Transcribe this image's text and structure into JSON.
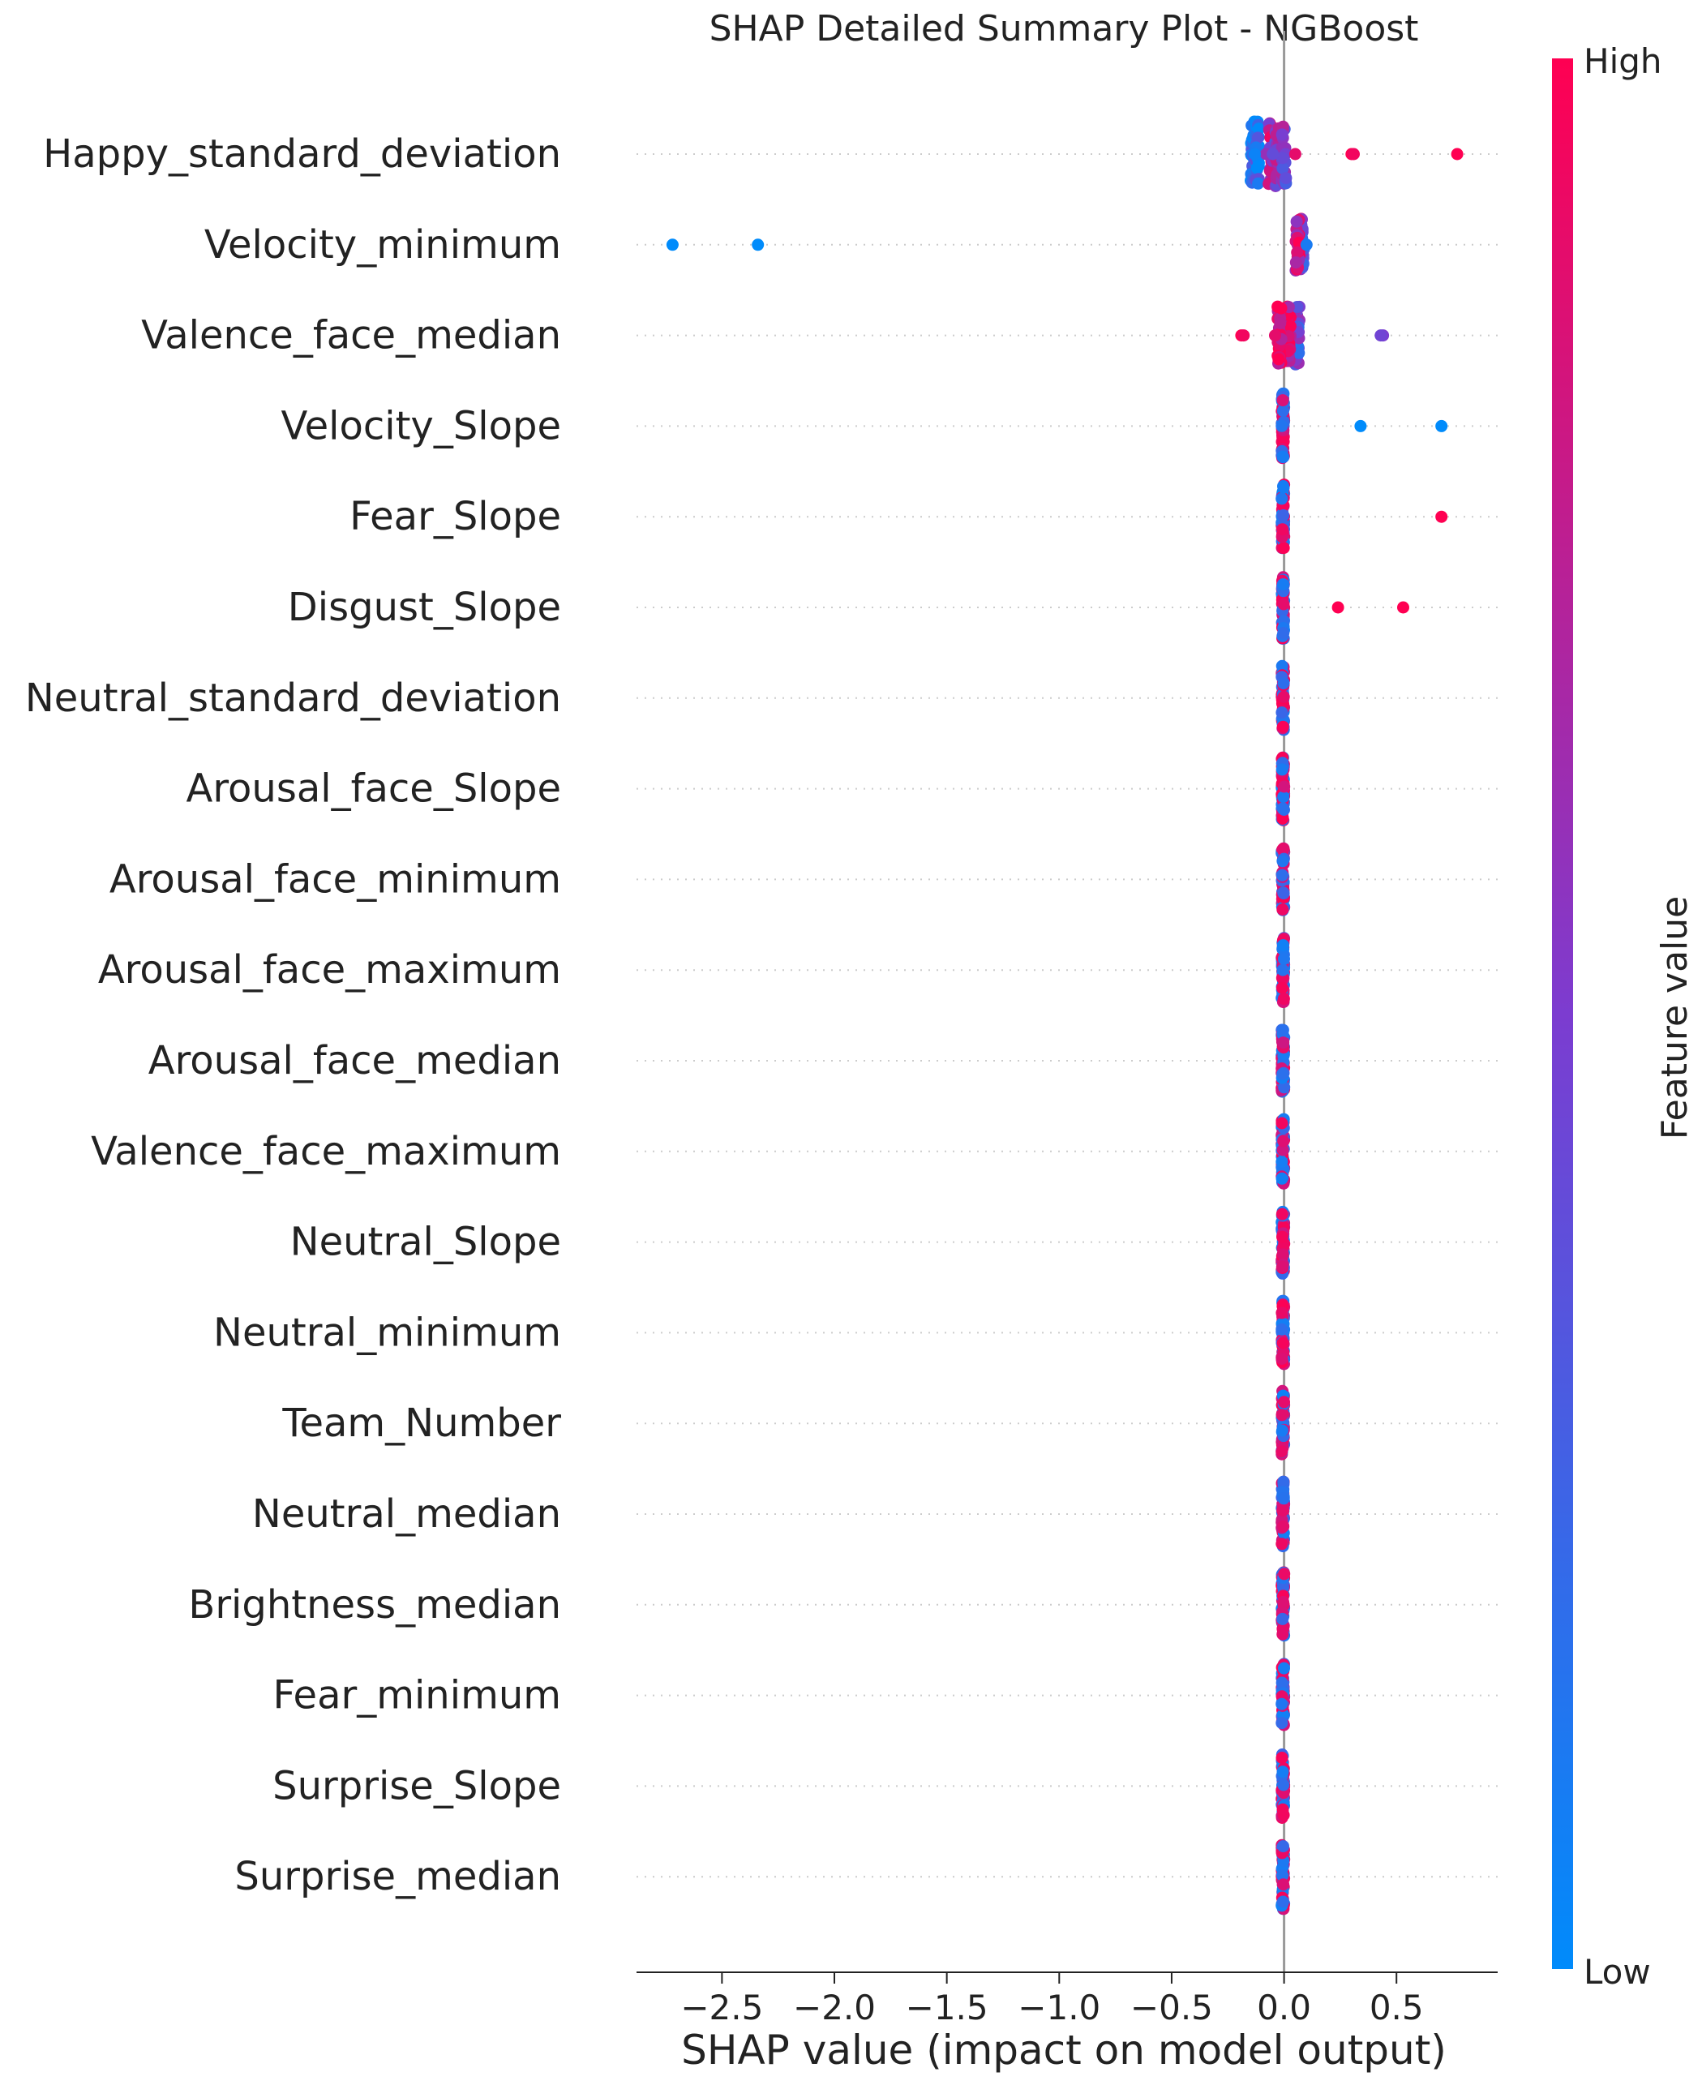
{
  "chart_data": {
    "type": "scatter",
    "title": "SHAP Detailed Summary Plot - NGBoost",
    "xlabel": "SHAP value (impact on model output)",
    "ylabel": "",
    "xlim": [
      -2.88,
      0.95
    ],
    "xticks": [
      -2.5,
      -2.0,
      -1.5,
      -1.0,
      -0.5,
      0.0,
      0.5
    ],
    "xtick_labels": [
      "−2.5",
      "−2.0",
      "−1.5",
      "−1.0",
      "−0.5",
      "0.0",
      "0.5"
    ],
    "grid": false,
    "colorbar": {
      "label": "Feature value",
      "high_label": "High",
      "low_label": "Low",
      "low_color": "#008bfb",
      "mid_color": "#7c3cd0",
      "high_color": "#ff0052"
    },
    "zero_line_color": "#999999",
    "features": [
      "Happy_standard_deviation",
      "Velocity_minimum",
      "Valence_face_median",
      "Velocity_Slope",
      "Fear_Slope",
      "Disgust_Slope",
      "Neutral_standard_deviation",
      "Arousal_face_Slope",
      "Arousal_face_minimum",
      "Arousal_face_maximum",
      "Arousal_face_median",
      "Valence_face_maximum",
      "Neutral_Slope",
      "Neutral_minimum",
      "Team_Number",
      "Neutral_median",
      "Brightness_median",
      "Fear_minimum",
      "Surprise_Slope",
      "Surprise_median"
    ],
    "outliers": [
      {
        "feature": "Happy_standard_deviation",
        "points": [
          [
            0.05,
            0.9
          ],
          [
            0.3,
            1.0
          ],
          [
            0.31,
            0.95
          ],
          [
            0.77,
            1.0
          ],
          [
            -0.08,
            0.6
          ],
          [
            -0.05,
            0.4
          ],
          [
            -0.13,
            0.05
          ]
        ]
      },
      {
        "feature": "Velocity_minimum",
        "points": [
          [
            -2.72,
            0.0
          ],
          [
            -2.34,
            0.0
          ],
          [
            0.1,
            0.1
          ]
        ]
      },
      {
        "feature": "Valence_face_median",
        "points": [
          [
            -0.19,
            1.0
          ],
          [
            -0.18,
            0.95
          ],
          [
            -0.04,
            0.9
          ],
          [
            0.44,
            0.5
          ],
          [
            0.43,
            0.45
          ]
        ]
      },
      {
        "feature": "Velocity_Slope",
        "points": [
          [
            0.34,
            0.0
          ],
          [
            0.7,
            0.0
          ]
        ]
      },
      {
        "feature": "Fear_Slope",
        "points": [
          [
            0.7,
            1.0
          ]
        ]
      },
      {
        "feature": "Disgust_Slope",
        "points": [
          [
            0.24,
            1.0
          ],
          [
            0.53,
            1.0
          ]
        ]
      }
    ]
  }
}
